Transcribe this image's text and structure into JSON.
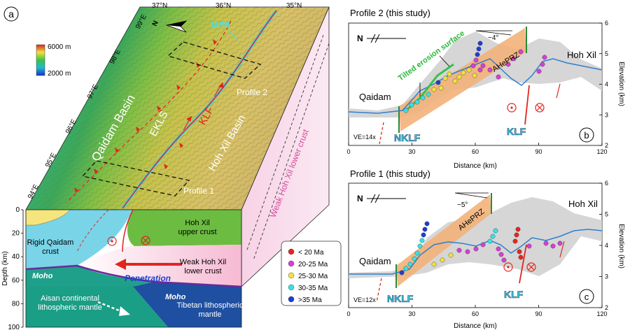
{
  "panel_a": {
    "label": "a",
    "lat_labels": [
      "37°N",
      "36°N",
      "35°N"
    ],
    "lon_labels": [
      "99°E",
      "98°E",
      "97°E",
      "96°E",
      "95°E",
      "94°E"
    ],
    "colorbar": {
      "max": "6000 m",
      "min": "2000 m"
    },
    "north": "N",
    "map_labels": {
      "meb": "MEB",
      "qaidam_basin": "Qaidam Basin",
      "ekls": "EKLS",
      "klf": "KLF",
      "hohxil_basin": "Hoh Xil Basin",
      "profile2": "Profile 2",
      "profile1": "Profile 1",
      "weak_side": "Weak Hoh Xil lower crust"
    },
    "depth_axis": {
      "title": "Depth (km)",
      "ticks": [
        "0",
        "20",
        "40",
        "60",
        "80",
        "100"
      ]
    },
    "section_labels": {
      "rigid_qaidam": [
        "Rigid Qaidam",
        "crust"
      ],
      "hohxil_upper": [
        "Hoh Xil",
        "upper crust"
      ],
      "weak_lower": [
        "Weak Hoh Xil",
        "lower crust"
      ],
      "penetration": "Penetration",
      "moho_left": "Moho",
      "moho_right": "Moho",
      "aisan": [
        "Aisan continental",
        "lithospheric mantle"
      ],
      "tibetan": [
        "Tibetan lithospheric",
        "mantle"
      ]
    }
  },
  "legend": {
    "items": [
      {
        "label": "< 20 Ma",
        "color": "#e8251f"
      },
      {
        "label": "20-25 Ma",
        "color": "#d73fd6"
      },
      {
        "label": "25-30 Ma",
        "color": "#f2e33a"
      },
      {
        "label": "30-35 Ma",
        "color": "#35e3e8"
      },
      {
        "label": ">35 Ma",
        "color": "#1e3fd0"
      }
    ]
  },
  "panel_b": {
    "title": "Profile 2 (this study)",
    "label": "b",
    "x_title": "Distance (km)",
    "y_title": "Elevation (km)",
    "x_ticks": [
      "0",
      "30",
      "60",
      "90",
      "120"
    ],
    "y_ticks": [
      "2",
      "3",
      "4",
      "5",
      "6"
    ],
    "north": "N",
    "angle": "~4°",
    "ahe": "AHePRZ",
    "surface": "Tilted erosion surface",
    "qaidam": "Qaidam",
    "hohxil": "Hoh Xil",
    "ve": "VE=14x",
    "nklf": "NKLF",
    "klf": "KLF"
  },
  "panel_c": {
    "title": "Profile 1 (this study)",
    "label": "c",
    "x_title": "Distance (km)",
    "y_title": "Elevation (km)",
    "x_ticks": [
      "0",
      "30",
      "60",
      "90",
      "120"
    ],
    "y_ticks": [
      "2",
      "3",
      "4",
      "5",
      "6"
    ],
    "north": "N",
    "angle": "~5°",
    "ahe": "AHePRZ",
    "qaidam": "Qaidam",
    "hohxil": "Hoh Xil",
    "ve": "VE=12x",
    "nklf": "NKLF",
    "klf": "KLF"
  }
}
